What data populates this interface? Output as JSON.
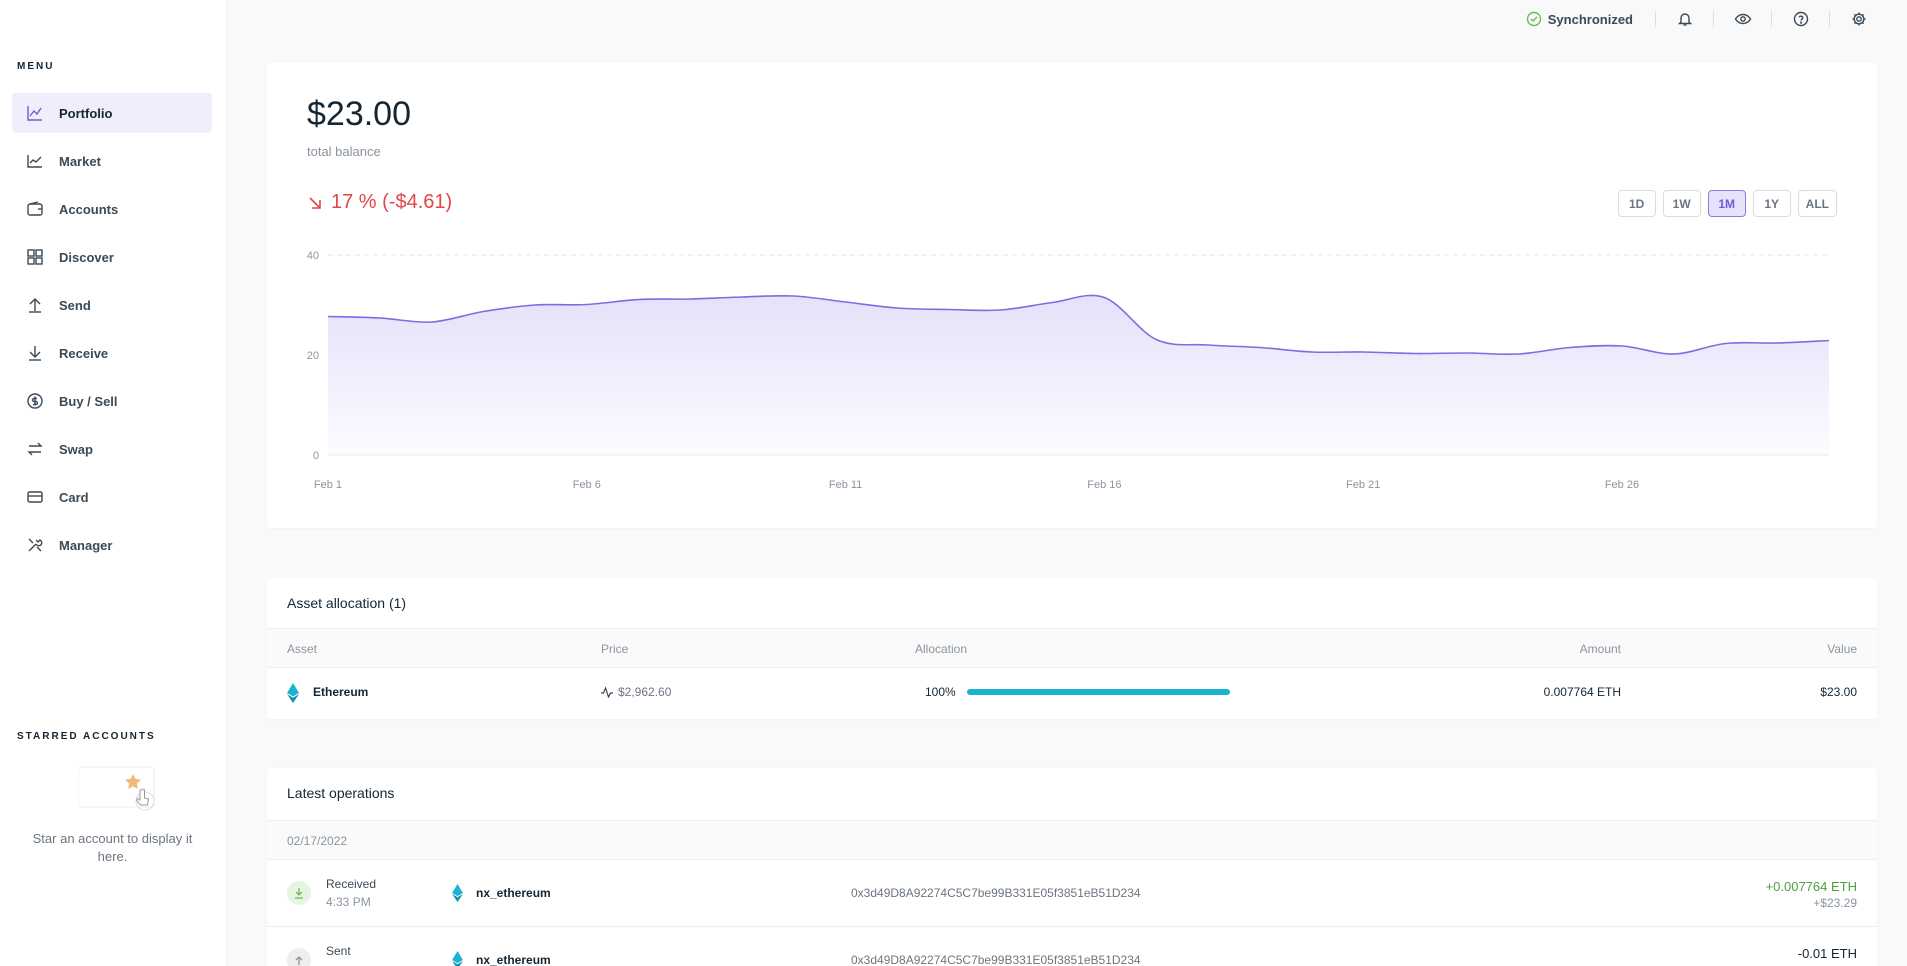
{
  "sidebar": {
    "menu_title": "MENU",
    "items": [
      {
        "label": "Portfolio",
        "icon": "chart-line-icon"
      },
      {
        "label": "Market",
        "icon": "market-icon"
      },
      {
        "label": "Accounts",
        "icon": "wallet-icon"
      },
      {
        "label": "Discover",
        "icon": "grid-icon"
      },
      {
        "label": "Send",
        "icon": "arrow-up-icon"
      },
      {
        "label": "Receive",
        "icon": "arrow-down-icon"
      },
      {
        "label": "Buy / Sell",
        "icon": "dollar-icon"
      },
      {
        "label": "Swap",
        "icon": "swap-icon"
      },
      {
        "label": "Card",
        "icon": "card-icon"
      },
      {
        "label": "Manager",
        "icon": "tools-icon"
      }
    ],
    "starred_title": "STARRED ACCOUNTS",
    "starred_empty": "Star an account to display it here."
  },
  "topbar": {
    "sync_status": "Synchronized",
    "icons": [
      "bell-icon",
      "eye-icon",
      "help-icon",
      "settings-icon"
    ]
  },
  "balance": {
    "amount": "$23.00",
    "label": "total balance",
    "change": "17 % (-$4.61)",
    "ranges": [
      "1D",
      "1W",
      "1M",
      "1Y",
      "ALL"
    ],
    "active_range": "1M"
  },
  "chart_data": {
    "type": "area",
    "x_ticks": [
      "Feb 1",
      "Feb 6",
      "Feb 11",
      "Feb 16",
      "Feb 21",
      "Feb 26"
    ],
    "y_ticks": [
      0,
      20,
      40
    ],
    "ylim": [
      0,
      40
    ],
    "x_start_day": 1,
    "x_end_day": 30,
    "points": [
      [
        1,
        27.7
      ],
      [
        2,
        27.4
      ],
      [
        3,
        26.6
      ],
      [
        4,
        28.7
      ],
      [
        5,
        30.0
      ],
      [
        6,
        30.1
      ],
      [
        7,
        31.1
      ],
      [
        8,
        31.2
      ],
      [
        9,
        31.6
      ],
      [
        10,
        31.8
      ],
      [
        11,
        30.6
      ],
      [
        12,
        29.4
      ],
      [
        13,
        29.1
      ],
      [
        14,
        29.0
      ],
      [
        15,
        30.5
      ],
      [
        16,
        31.5
      ],
      [
        17,
        23.1
      ],
      [
        18,
        22.0
      ],
      [
        19,
        21.5
      ],
      [
        20,
        20.6
      ],
      [
        21,
        20.6
      ],
      [
        22,
        20.3
      ],
      [
        23,
        20.4
      ],
      [
        24,
        20.2
      ],
      [
        25,
        21.5
      ],
      [
        26,
        21.8
      ],
      [
        27,
        20.2
      ],
      [
        28,
        22.3
      ],
      [
        29,
        22.4
      ],
      [
        30,
        22.9
      ]
    ],
    "grid": true,
    "colors": {
      "line": "#7b6ee0",
      "fill": "#e5e1fa"
    }
  },
  "allocation": {
    "title": "Asset allocation (1)",
    "headers": [
      "Asset",
      "Price",
      "Allocation",
      "Amount",
      "Value"
    ],
    "rows": [
      {
        "asset": "Ethereum",
        "price": "$2,962.60",
        "allocation": "100%",
        "allocation_fraction": 1.0,
        "amount": "0.007764 ETH",
        "value": "$23.00"
      }
    ]
  },
  "operations": {
    "title": "Latest operations",
    "date": "02/17/2022",
    "rows": [
      {
        "type": "Received",
        "time": "4:33 PM",
        "account": "nx_ethereum",
        "address": "0x3d49D8A92274C5C7be99B331E05f3851eB51D234",
        "amount": "+0.007764 ETH",
        "value": "+$23.29"
      },
      {
        "type": "Sent",
        "time": "",
        "account": "nx_ethereum",
        "address": "0x3d49D8A92274C5C7be99B331E05f3851eB51D234",
        "amount": "-0.01 ETH",
        "value": ""
      }
    ]
  },
  "colors": {
    "accent": "#6b5ed8",
    "negative": "#e24747",
    "positive": "#66be54",
    "allocation_bar": "#1ab3cf"
  }
}
